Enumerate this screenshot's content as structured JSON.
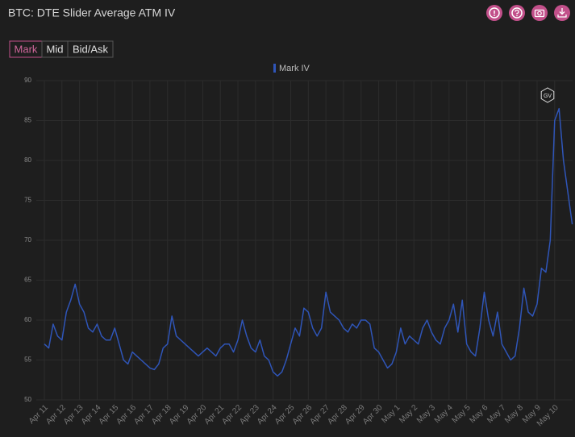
{
  "toolbar": {
    "modes": [
      "Mark",
      "Mid",
      "Bid/Ask"
    ],
    "active": 0
  },
  "chart_data": {
    "type": "line",
    "title": "BTC: DTE Slider Average ATM IV",
    "watermark": "GV",
    "categories": [
      "Apr 11",
      null,
      null,
      null,
      "Apr 12",
      null,
      null,
      null,
      "Apr 13",
      null,
      null,
      null,
      "Apr 14",
      null,
      null,
      null,
      "Apr 15",
      null,
      null,
      null,
      "Apr 16",
      null,
      null,
      null,
      "Apr 17",
      null,
      null,
      null,
      "Apr 18",
      null,
      null,
      null,
      "Apr 19",
      null,
      null,
      null,
      "Apr 20",
      null,
      null,
      null,
      "Apr 21",
      null,
      null,
      null,
      "Apr 22",
      null,
      null,
      null,
      "Apr 23",
      null,
      null,
      null,
      "Apr 24",
      null,
      null,
      null,
      "Apr 25",
      null,
      null,
      null,
      "Apr 26",
      null,
      null,
      null,
      "Apr 27",
      null,
      null,
      null,
      "Apr 28",
      null,
      null,
      null,
      "Apr 29",
      null,
      null,
      null,
      "Apr 30",
      null,
      null,
      null,
      "May 1",
      null,
      null,
      null,
      "May 2",
      null,
      null,
      null,
      "May 3",
      null,
      null,
      null,
      "May 4",
      null,
      null,
      null,
      "May 5",
      null,
      null,
      null,
      "May 6",
      null,
      null,
      null,
      "May 7",
      null,
      null,
      null,
      "May 8",
      null,
      null,
      null,
      "May 9",
      null,
      null,
      null,
      "May 10",
      null,
      null,
      null,
      null
    ],
    "series": [
      {
        "name": "Mark IV",
        "color": "#2f55b8",
        "values": [
          57,
          56.5,
          59.5,
          58,
          57.5,
          61,
          62.5,
          64.5,
          62,
          61,
          59,
          58.5,
          59.5,
          58,
          57.5,
          57.5,
          59,
          57,
          55,
          54.5,
          56,
          55.5,
          55,
          54.5,
          54,
          53.8,
          54.5,
          56.5,
          57,
          60.5,
          58,
          57.5,
          57,
          56.5,
          56,
          55.5,
          56,
          56.5,
          56,
          55.5,
          56.5,
          57,
          57,
          56,
          57.5,
          60,
          58,
          56.5,
          56,
          57.5,
          55.5,
          55,
          53.5,
          53,
          53.5,
          55,
          57,
          59,
          58,
          61.5,
          61,
          59,
          58,
          59,
          63.5,
          61,
          60.5,
          60,
          59,
          58.5,
          59.5,
          59,
          60,
          60,
          59.5,
          56.5,
          56,
          55,
          54,
          54.5,
          56,
          59,
          57,
          58,
          57.5,
          57,
          59,
          60,
          58.5,
          57.5,
          57,
          59,
          60,
          62,
          58.5,
          62.5,
          57,
          56,
          55.5,
          59,
          63.5,
          60,
          58,
          61,
          57,
          56,
          55,
          55.5,
          59,
          64,
          61,
          60.5,
          62,
          66.5,
          66,
          70,
          85,
          86.5,
          80,
          76,
          72
        ]
      }
    ],
    "ylim": [
      50,
      90
    ],
    "yticks": [
      50,
      55,
      60,
      65,
      70,
      75,
      80,
      85,
      90
    ],
    "grid": true,
    "legend": "top"
  }
}
